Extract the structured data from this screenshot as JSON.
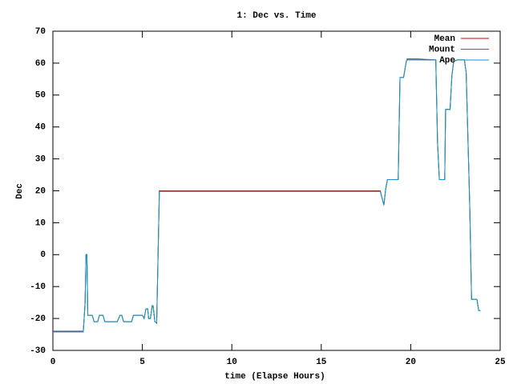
{
  "chart_data": {
    "type": "line",
    "title": "1: Dec vs. Time",
    "xlabel": "time (Elapse Hours)",
    "ylabel": "Dec",
    "xlim": [
      0,
      25
    ],
    "ylim": [
      -30,
      70
    ],
    "xticks": [
      0,
      5,
      10,
      15,
      20,
      25
    ],
    "yticks": [
      -30,
      -20,
      -10,
      0,
      10,
      20,
      30,
      40,
      50,
      60,
      70
    ],
    "legend": "top right",
    "x": [
      0,
      1.7,
      1.8,
      1.85,
      1.9,
      1.95,
      2.2,
      2.3,
      2.5,
      2.6,
      2.8,
      2.9,
      3.6,
      3.75,
      3.85,
      3.95,
      4.4,
      4.5,
      5.0,
      5.1,
      5.2,
      5.3,
      5.35,
      5.45,
      5.55,
      5.6,
      5.7,
      5.8,
      5.95,
      17,
      18.3,
      18.5,
      18.6,
      18.7,
      19.3,
      19.4,
      19.6,
      19.75,
      19.8,
      20.4,
      21.4,
      21.5,
      21.6,
      21.9,
      21.95,
      22.2,
      22.3,
      22.4,
      22.6,
      23.0,
      23.1,
      23.3,
      23.4,
      23.7,
      23.8,
      23.9
    ],
    "series": [
      {
        "name": "Mean",
        "color": "#cc0000",
        "values": [
          -24,
          -24,
          -15,
          0,
          0,
          -19,
          -19,
          -21,
          -21,
          -19,
          -19,
          -21,
          -21,
          -19,
          -19,
          -21,
          -21,
          -19,
          -19,
          -20,
          -17,
          -17,
          -20,
          -20,
          -16,
          -16,
          -21,
          -21.5,
          20,
          20,
          20,
          15.5,
          20.5,
          23.5,
          23.5,
          55.5,
          55.5,
          60.5,
          61.3,
          61.3,
          61,
          35,
          23.5,
          23.5,
          45.5,
          45.5,
          56,
          60.5,
          61,
          61,
          57,
          15,
          -14,
          -14,
          -17.5,
          -17.5
        ]
      },
      {
        "name": "Mount",
        "color": "#00aa00",
        "values": [
          -24.2,
          -24.2,
          -15,
          0,
          0,
          -19,
          -19,
          -21,
          -21,
          -19,
          -19,
          -21,
          -21,
          -19,
          -19,
          -21,
          -21,
          -19,
          -19,
          -20,
          -17,
          -17,
          -20,
          -20,
          -16,
          -16,
          -21,
          -21.5,
          19.8,
          19.8,
          19.8,
          15.5,
          20.5,
          23.5,
          23.5,
          55.5,
          55.5,
          60.5,
          61,
          61,
          61,
          35,
          23.5,
          23.5,
          45.5,
          45.5,
          56,
          60.5,
          61,
          61,
          57,
          15,
          -14,
          -14,
          -17.5,
          -17.5
        ]
      },
      {
        "name": "Ape",
        "color": "#1f8fd6",
        "values": [
          -24.2,
          -24.2,
          -15,
          0,
          0,
          -19,
          -19,
          -21,
          -21,
          -19,
          -19,
          -21,
          -21,
          -19,
          -19,
          -21,
          -21,
          -19,
          -19,
          -20,
          -17,
          -17,
          -20,
          -20,
          -16,
          -16,
          -21,
          -21.5,
          19.8,
          19.8,
          19.8,
          15.5,
          20.5,
          23.5,
          23.5,
          55.5,
          55.5,
          60.5,
          61,
          61,
          61,
          35,
          23.5,
          23.5,
          45.5,
          45.5,
          56,
          60.5,
          61,
          61,
          57,
          15,
          -14,
          -14,
          -17.5,
          -17.5
        ]
      }
    ]
  }
}
